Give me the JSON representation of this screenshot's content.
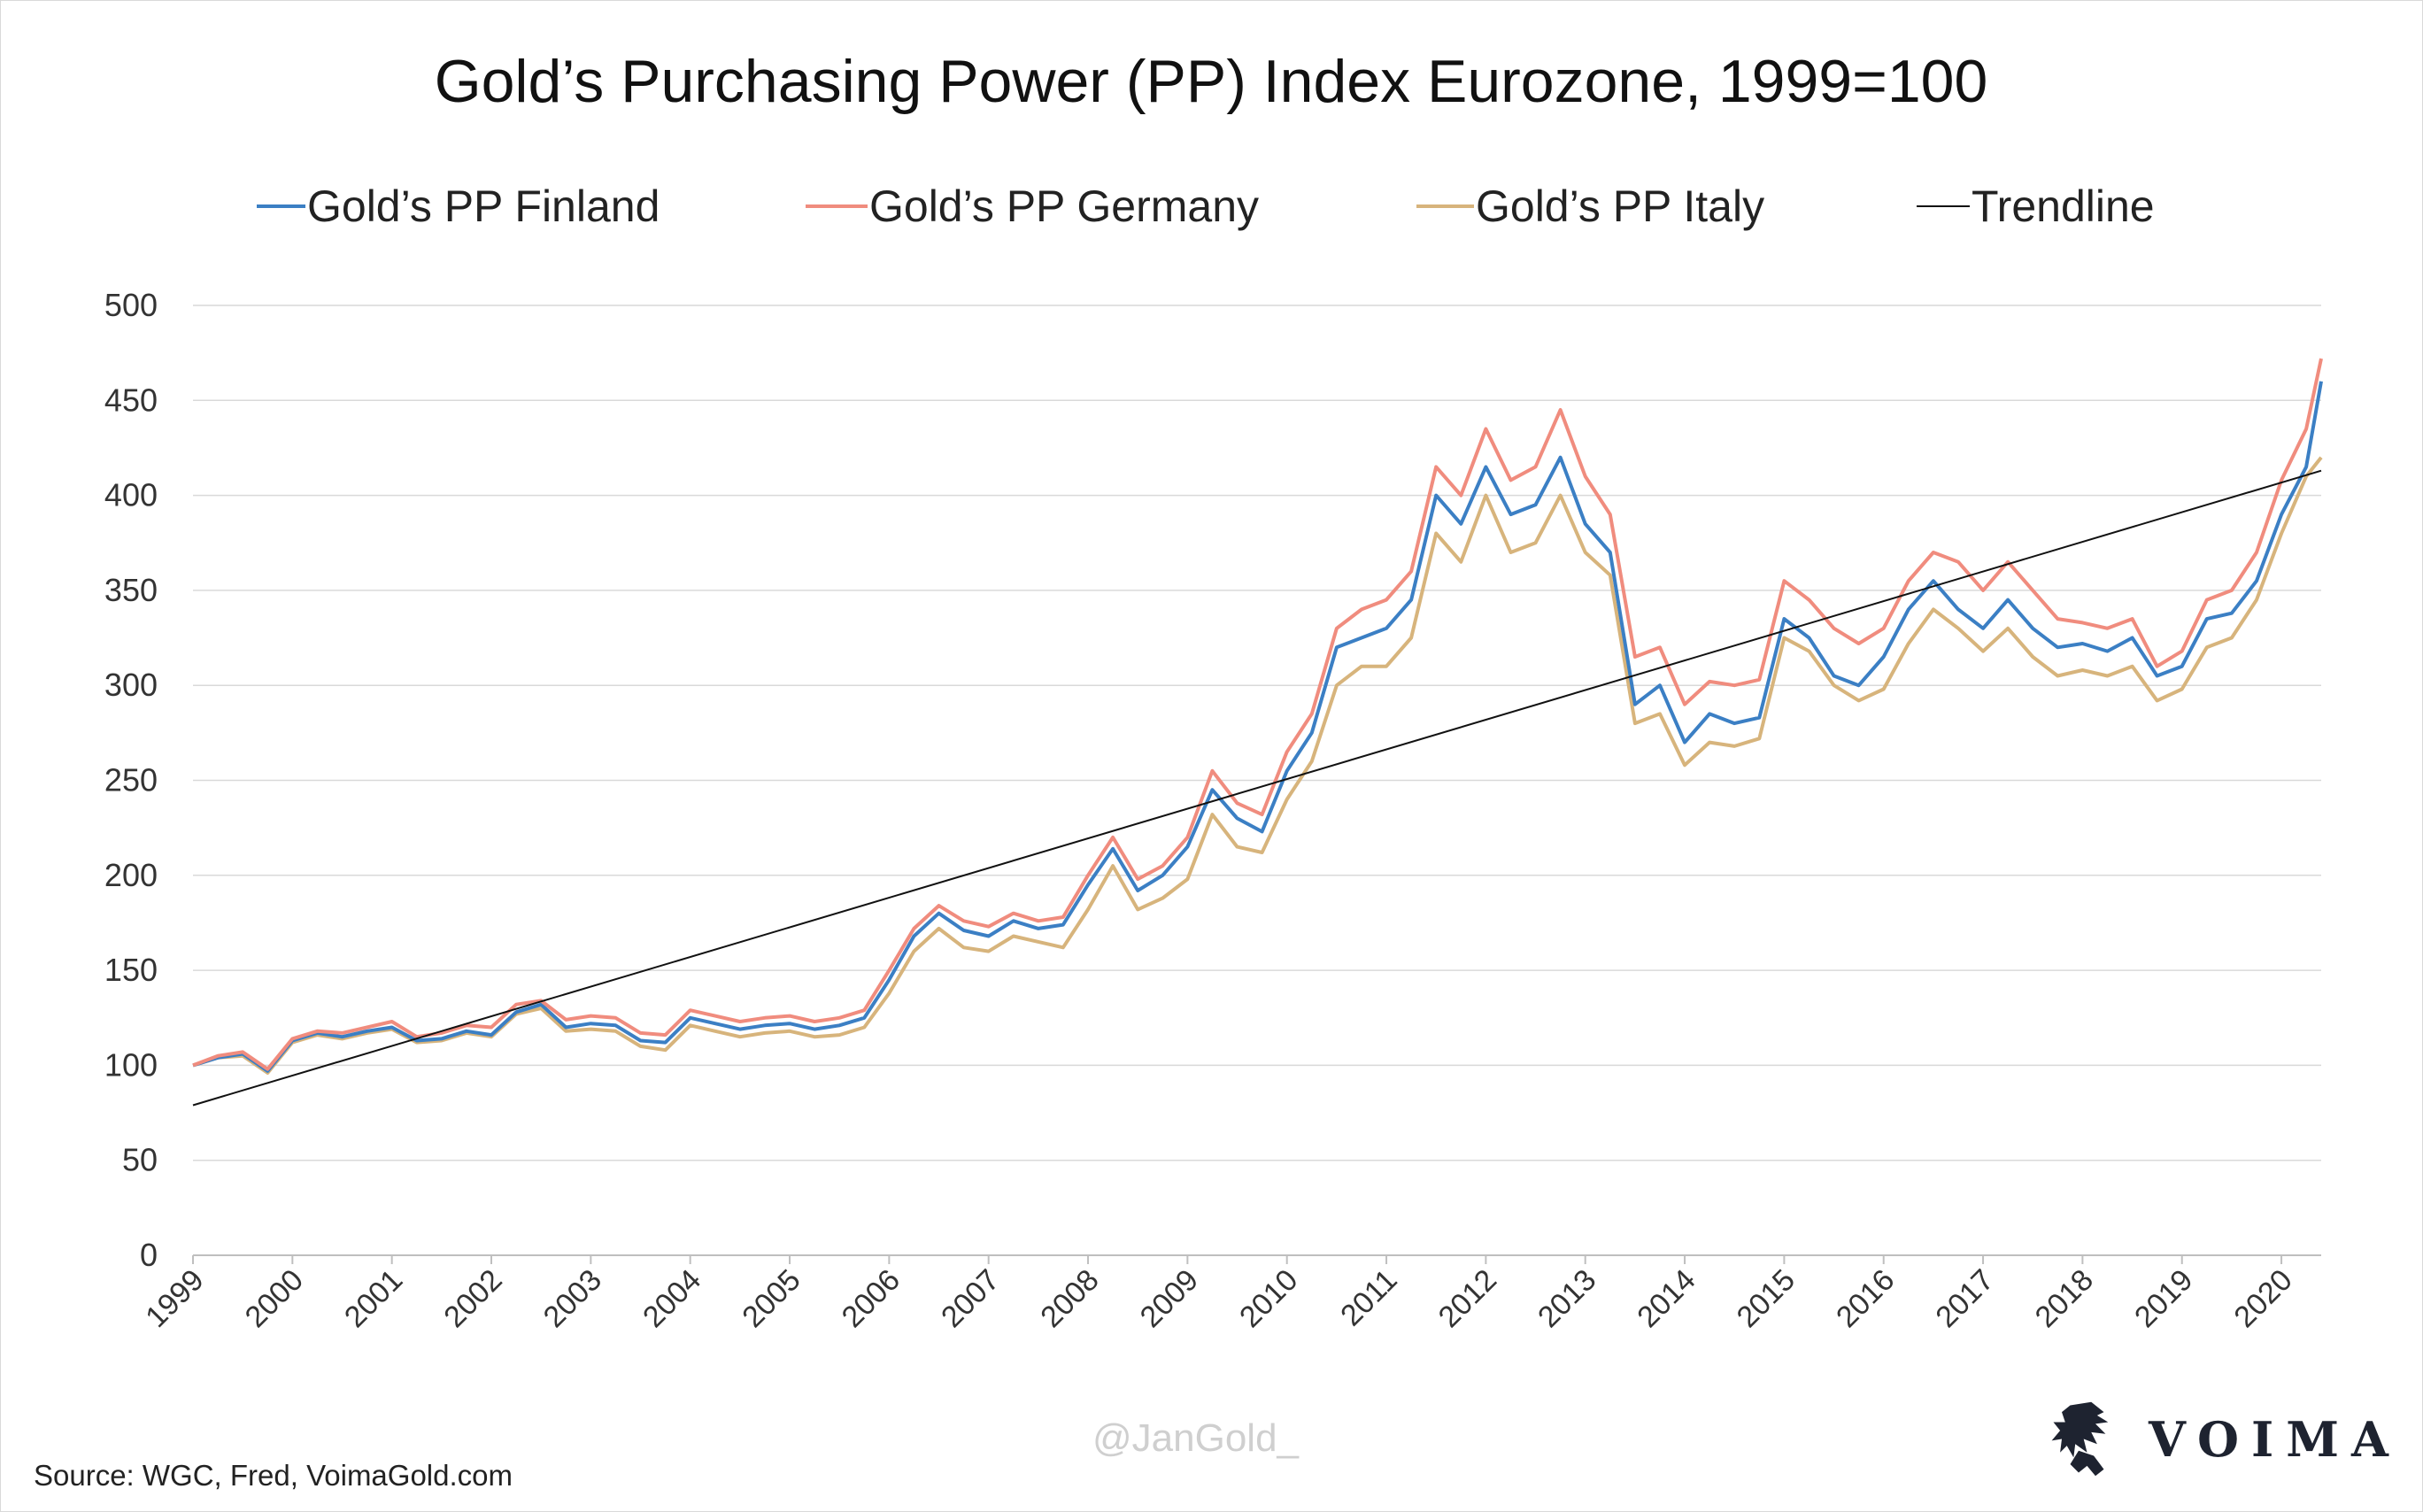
{
  "chart_data": {
    "type": "line",
    "title": "Gold’s Purchasing Power (PP) Index Eurozone, 1999=100",
    "xlabel": "",
    "ylabel": "",
    "ylim": [
      0,
      500
    ],
    "yticks": [
      0,
      50,
      100,
      150,
      200,
      250,
      300,
      350,
      400,
      450,
      500
    ],
    "xticks": [
      "1999",
      "2000",
      "2001",
      "2002",
      "2003",
      "2004",
      "2005",
      "2006",
      "2007",
      "2008",
      "2009",
      "2010",
      "2011",
      "2012",
      "2013",
      "2014",
      "2015",
      "2016",
      "2017",
      "2018",
      "2019",
      "2020"
    ],
    "xlim": [
      1999.0,
      2020.4
    ],
    "grid": true,
    "legend_position": "top",
    "series": [
      {
        "name": "Gold’s PP Finland",
        "color": "#3b7fc4",
        "points": [
          [
            1999.0,
            100
          ],
          [
            1999.25,
            104
          ],
          [
            1999.5,
            106
          ],
          [
            1999.75,
            97
          ],
          [
            2000.0,
            113
          ],
          [
            2000.25,
            117
          ],
          [
            2000.5,
            115
          ],
          [
            2000.75,
            118
          ],
          [
            2001.0,
            120
          ],
          [
            2001.25,
            113
          ],
          [
            2001.5,
            114
          ],
          [
            2001.75,
            118
          ],
          [
            2002.0,
            116
          ],
          [
            2002.25,
            128
          ],
          [
            2002.5,
            132
          ],
          [
            2002.75,
            120
          ],
          [
            2003.0,
            122
          ],
          [
            2003.25,
            121
          ],
          [
            2003.5,
            113
          ],
          [
            2003.75,
            112
          ],
          [
            2004.0,
            125
          ],
          [
            2004.25,
            122
          ],
          [
            2004.5,
            119
          ],
          [
            2004.75,
            121
          ],
          [
            2005.0,
            122
          ],
          [
            2005.25,
            119
          ],
          [
            2005.5,
            121
          ],
          [
            2005.75,
            125
          ],
          [
            2006.0,
            145
          ],
          [
            2006.25,
            168
          ],
          [
            2006.5,
            180
          ],
          [
            2006.75,
            171
          ],
          [
            2007.0,
            168
          ],
          [
            2007.25,
            176
          ],
          [
            2007.5,
            172
          ],
          [
            2007.75,
            174
          ],
          [
            2008.0,
            195
          ],
          [
            2008.25,
            214
          ],
          [
            2008.5,
            192
          ],
          [
            2008.75,
            200
          ],
          [
            2009.0,
            215
          ],
          [
            2009.25,
            245
          ],
          [
            2009.5,
            230
          ],
          [
            2009.75,
            223
          ],
          [
            2010.0,
            255
          ],
          [
            2010.25,
            275
          ],
          [
            2010.5,
            320
          ],
          [
            2010.75,
            325
          ],
          [
            2011.0,
            330
          ],
          [
            2011.25,
            345
          ],
          [
            2011.5,
            400
          ],
          [
            2011.75,
            385
          ],
          [
            2012.0,
            415
          ],
          [
            2012.25,
            390
          ],
          [
            2012.5,
            395
          ],
          [
            2012.75,
            420
          ],
          [
            2013.0,
            385
          ],
          [
            2013.25,
            370
          ],
          [
            2013.5,
            290
          ],
          [
            2013.75,
            300
          ],
          [
            2014.0,
            270
          ],
          [
            2014.25,
            285
          ],
          [
            2014.5,
            280
          ],
          [
            2014.75,
            283
          ],
          [
            2015.0,
            335
          ],
          [
            2015.25,
            325
          ],
          [
            2015.5,
            305
          ],
          [
            2015.75,
            300
          ],
          [
            2016.0,
            315
          ],
          [
            2016.25,
            340
          ],
          [
            2016.5,
            355
          ],
          [
            2016.75,
            340
          ],
          [
            2017.0,
            330
          ],
          [
            2017.25,
            345
          ],
          [
            2017.5,
            330
          ],
          [
            2017.75,
            320
          ],
          [
            2018.0,
            322
          ],
          [
            2018.25,
            318
          ],
          [
            2018.5,
            325
          ],
          [
            2018.75,
            305
          ],
          [
            2019.0,
            310
          ],
          [
            2019.25,
            335
          ],
          [
            2019.5,
            338
          ],
          [
            2019.75,
            355
          ],
          [
            2020.0,
            390
          ],
          [
            2020.25,
            415
          ],
          [
            2020.4,
            460
          ]
        ]
      },
      {
        "name": "Gold’s PP Germany",
        "color": "#f08c7e",
        "points": [
          [
            1999.0,
            100
          ],
          [
            1999.25,
            105
          ],
          [
            1999.5,
            107
          ],
          [
            1999.75,
            98
          ],
          [
            2000.0,
            114
          ],
          [
            2000.25,
            118
          ],
          [
            2000.5,
            117
          ],
          [
            2000.75,
            120
          ],
          [
            2001.0,
            123
          ],
          [
            2001.25,
            115
          ],
          [
            2001.5,
            117
          ],
          [
            2001.75,
            121
          ],
          [
            2002.0,
            120
          ],
          [
            2002.25,
            132
          ],
          [
            2002.5,
            134
          ],
          [
            2002.75,
            124
          ],
          [
            2003.0,
            126
          ],
          [
            2003.25,
            125
          ],
          [
            2003.5,
            117
          ],
          [
            2003.75,
            116
          ],
          [
            2004.0,
            129
          ],
          [
            2004.25,
            126
          ],
          [
            2004.5,
            123
          ],
          [
            2004.75,
            125
          ],
          [
            2005.0,
            126
          ],
          [
            2005.25,
            123
          ],
          [
            2005.5,
            125
          ],
          [
            2005.75,
            129
          ],
          [
            2006.0,
            150
          ],
          [
            2006.25,
            172
          ],
          [
            2006.5,
            184
          ],
          [
            2006.75,
            176
          ],
          [
            2007.0,
            173
          ],
          [
            2007.25,
            180
          ],
          [
            2007.5,
            176
          ],
          [
            2007.75,
            178
          ],
          [
            2008.0,
            200
          ],
          [
            2008.25,
            220
          ],
          [
            2008.5,
            198
          ],
          [
            2008.75,
            205
          ],
          [
            2009.0,
            220
          ],
          [
            2009.25,
            255
          ],
          [
            2009.5,
            238
          ],
          [
            2009.75,
            232
          ],
          [
            2010.0,
            265
          ],
          [
            2010.25,
            285
          ],
          [
            2010.5,
            330
          ],
          [
            2010.75,
            340
          ],
          [
            2011.0,
            345
          ],
          [
            2011.25,
            360
          ],
          [
            2011.5,
            415
          ],
          [
            2011.75,
            400
          ],
          [
            2012.0,
            435
          ],
          [
            2012.25,
            408
          ],
          [
            2012.5,
            415
          ],
          [
            2012.75,
            445
          ],
          [
            2013.0,
            410
          ],
          [
            2013.25,
            390
          ],
          [
            2013.5,
            315
          ],
          [
            2013.75,
            320
          ],
          [
            2014.0,
            290
          ],
          [
            2014.25,
            302
          ],
          [
            2014.5,
            300
          ],
          [
            2014.75,
            303
          ],
          [
            2015.0,
            355
          ],
          [
            2015.25,
            345
          ],
          [
            2015.5,
            330
          ],
          [
            2015.75,
            322
          ],
          [
            2016.0,
            330
          ],
          [
            2016.25,
            355
          ],
          [
            2016.5,
            370
          ],
          [
            2016.75,
            365
          ],
          [
            2017.0,
            350
          ],
          [
            2017.25,
            365
          ],
          [
            2017.5,
            350
          ],
          [
            2017.75,
            335
          ],
          [
            2018.0,
            333
          ],
          [
            2018.25,
            330
          ],
          [
            2018.5,
            335
          ],
          [
            2018.75,
            310
          ],
          [
            2019.0,
            318
          ],
          [
            2019.25,
            345
          ],
          [
            2019.5,
            350
          ],
          [
            2019.75,
            370
          ],
          [
            2020.0,
            408
          ],
          [
            2020.25,
            435
          ],
          [
            2020.4,
            472
          ]
        ]
      },
      {
        "name": "Gold’s PP Italy",
        "color": "#d7b47c",
        "points": [
          [
            1999.0,
            100
          ],
          [
            1999.25,
            104
          ],
          [
            1999.5,
            105
          ],
          [
            1999.75,
            96
          ],
          [
            2000.0,
            112
          ],
          [
            2000.25,
            116
          ],
          [
            2000.5,
            114
          ],
          [
            2000.75,
            117
          ],
          [
            2001.0,
            119
          ],
          [
            2001.25,
            112
          ],
          [
            2001.5,
            113
          ],
          [
            2001.75,
            117
          ],
          [
            2002.0,
            115
          ],
          [
            2002.25,
            127
          ],
          [
            2002.5,
            130
          ],
          [
            2002.75,
            118
          ],
          [
            2003.0,
            119
          ],
          [
            2003.25,
            118
          ],
          [
            2003.5,
            110
          ],
          [
            2003.75,
            108
          ],
          [
            2004.0,
            121
          ],
          [
            2004.25,
            118
          ],
          [
            2004.5,
            115
          ],
          [
            2004.75,
            117
          ],
          [
            2005.0,
            118
          ],
          [
            2005.25,
            115
          ],
          [
            2005.5,
            116
          ],
          [
            2005.75,
            120
          ],
          [
            2006.0,
            138
          ],
          [
            2006.25,
            160
          ],
          [
            2006.5,
            172
          ],
          [
            2006.75,
            162
          ],
          [
            2007.0,
            160
          ],
          [
            2007.25,
            168
          ],
          [
            2007.5,
            165
          ],
          [
            2007.75,
            162
          ],
          [
            2008.0,
            182
          ],
          [
            2008.25,
            205
          ],
          [
            2008.5,
            182
          ],
          [
            2008.75,
            188
          ],
          [
            2009.0,
            198
          ],
          [
            2009.25,
            232
          ],
          [
            2009.5,
            215
          ],
          [
            2009.75,
            212
          ],
          [
            2010.0,
            240
          ],
          [
            2010.25,
            260
          ],
          [
            2010.5,
            300
          ],
          [
            2010.75,
            310
          ],
          [
            2011.0,
            310
          ],
          [
            2011.25,
            325
          ],
          [
            2011.5,
            380
          ],
          [
            2011.75,
            365
          ],
          [
            2012.0,
            400
          ],
          [
            2012.25,
            370
          ],
          [
            2012.5,
            375
          ],
          [
            2012.75,
            400
          ],
          [
            2013.0,
            370
          ],
          [
            2013.25,
            358
          ],
          [
            2013.5,
            280
          ],
          [
            2013.75,
            285
          ],
          [
            2014.0,
            258
          ],
          [
            2014.25,
            270
          ],
          [
            2014.5,
            268
          ],
          [
            2014.75,
            272
          ],
          [
            2015.0,
            325
          ],
          [
            2015.25,
            318
          ],
          [
            2015.5,
            300
          ],
          [
            2015.75,
            292
          ],
          [
            2016.0,
            298
          ],
          [
            2016.25,
            322
          ],
          [
            2016.5,
            340
          ],
          [
            2016.75,
            330
          ],
          [
            2017.0,
            318
          ],
          [
            2017.25,
            330
          ],
          [
            2017.5,
            315
          ],
          [
            2017.75,
            305
          ],
          [
            2018.0,
            308
          ],
          [
            2018.25,
            305
          ],
          [
            2018.5,
            310
          ],
          [
            2018.75,
            292
          ],
          [
            2019.0,
            298
          ],
          [
            2019.25,
            320
          ],
          [
            2019.5,
            325
          ],
          [
            2019.75,
            345
          ],
          [
            2020.0,
            380
          ],
          [
            2020.25,
            410
          ],
          [
            2020.4,
            420
          ]
        ]
      },
      {
        "name": "Trendline",
        "color": "#111111",
        "points": [
          [
            1999.0,
            79
          ],
          [
            2020.4,
            413
          ]
        ]
      }
    ]
  },
  "source": "Source: WGC, Fred, VoimaGold.com",
  "watermark": "@JanGold_",
  "brand": {
    "name": "VOIMA",
    "logo_icon": "lion-icon"
  }
}
